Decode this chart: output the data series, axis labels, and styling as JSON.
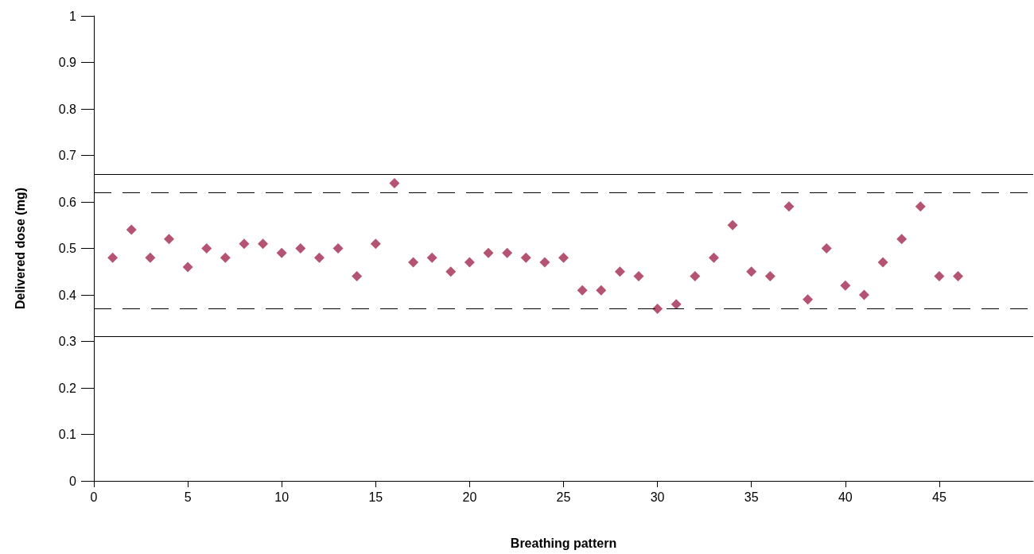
{
  "chart_data": {
    "type": "scatter",
    "xlabel": "Breathing pattern",
    "ylabel": "Delivered dose (mg)",
    "x": [
      1,
      2,
      3,
      4,
      5,
      6,
      7,
      8,
      9,
      10,
      11,
      12,
      13,
      14,
      15,
      16,
      17,
      18,
      19,
      20,
      21,
      22,
      23,
      24,
      25,
      26,
      27,
      28,
      29,
      30,
      31,
      32,
      33,
      34,
      35,
      36,
      37,
      38,
      39,
      40,
      41,
      42,
      43,
      44,
      45,
      46
    ],
    "values": [
      0.48,
      0.54,
      0.48,
      0.52,
      0.46,
      0.5,
      0.48,
      0.51,
      0.51,
      0.49,
      0.5,
      0.48,
      0.5,
      0.44,
      0.51,
      0.64,
      0.47,
      0.48,
      0.45,
      0.47,
      0.49,
      0.49,
      0.48,
      0.47,
      0.48,
      0.41,
      0.41,
      0.45,
      0.44,
      0.37,
      0.38,
      0.44,
      0.48,
      0.55,
      0.45,
      0.44,
      0.59,
      0.39,
      0.5,
      0.42,
      0.4,
      0.47,
      0.52,
      0.59,
      0.44,
      0.44
    ],
    "color": "#a3284f",
    "marker": "diamond",
    "xlim": [
      0,
      50
    ],
    "xticks": [
      0,
      5,
      10,
      15,
      20,
      25,
      30,
      35,
      40,
      45
    ],
    "ylim": [
      0,
      1
    ],
    "yticks": [
      0,
      0.1,
      0.2,
      0.3,
      0.4,
      0.5,
      0.6,
      0.7,
      0.8,
      0.9,
      1
    ],
    "ref_lines": [
      {
        "axis": "y",
        "value": 0.66,
        "line_style": "solid",
        "color": "#000000"
      },
      {
        "axis": "y",
        "value": 0.62,
        "line_style": "dashed",
        "color": "#000000"
      },
      {
        "axis": "y",
        "value": 0.37,
        "line_style": "dashed",
        "color": "#000000"
      },
      {
        "axis": "y",
        "value": 0.31,
        "line_style": "solid",
        "color": "#000000"
      }
    ],
    "grid": false
  }
}
